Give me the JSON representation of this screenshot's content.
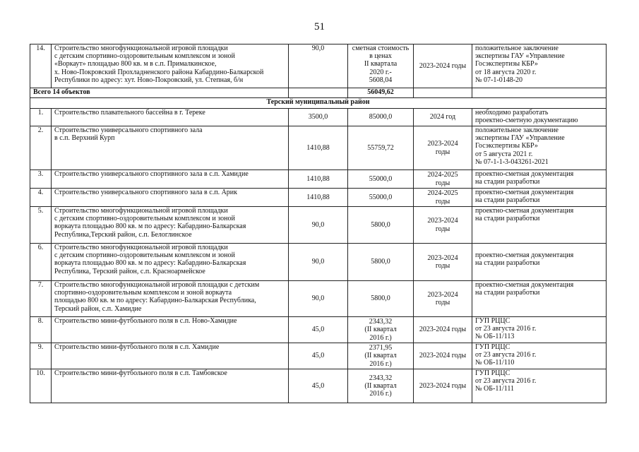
{
  "page_number": "51",
  "total_row": {
    "label": "Всего 14 объектов",
    "cost": "56049,62"
  },
  "section_title": "Терский муниципальный район",
  "rows_before": [
    {
      "num": "14.",
      "name": "Строительство многофункциональной игровой площадки\nс детским спортивно-оздоровительным комплексом и зоной\n«Воркаут» площадью 800 кв. м в с.п. Прималкинское,\nх. Ново-Покровский Прохладненского района Кабардино-Балкарской\nРеспублики по адресу: хут. Ново-Покровский, ул. Степная, б/н",
      "capacity": "90,0",
      "cost": "сметная стоимость\nв ценах\nII квартала\n2020 г.-\n5608,04",
      "period": "2023-2024 годы",
      "status": "положительное заключение\nэкспертизы ГАУ «Управление\nГосэкспертизы КБР»\nот 18 августа 2020 г.\n№ 07-1-0148-20"
    }
  ],
  "rows": [
    {
      "num": "1.",
      "name": "Строительство плавательного бассейна в г. Тереке",
      "capacity": "3500,0",
      "cost": "85000,0",
      "period": "2024 год",
      "status": "необходимо разработать\nпроектно-сметную документацию"
    },
    {
      "num": "2.",
      "name": "Строительство универсального спортивного зала\nв с.п. Верхний Курп",
      "capacity": "1410,88",
      "cost": "55759,72",
      "period": "2023-2024\nгоды",
      "status": "положительное заключение\nэкспертизы ГАУ «Управление\nГосэкспертизы КБР»\nот 5 августа 2021 г.\n№ 07-1-1-3-043261-2021"
    },
    {
      "num": "3.",
      "name": "Строительство универсального спортивного зала в с.п. Хамидие",
      "capacity": "1410,88",
      "cost": "55000,0",
      "period": "2024-2025\nгоды",
      "status": "проектно-сметная документация\nна стадии разработки"
    },
    {
      "num": "4.",
      "name": "Строительство универсального спортивного зала в с.п. Арик",
      "capacity": "1410,88",
      "cost": "55000,0",
      "period": "2024-2025\nгоды",
      "status": "проектно-сметная документация\nна стадии разработки"
    },
    {
      "num": "5.",
      "name": "Строительство многофункциональной игровой площадки\nс детским спортивно-оздоровительным комплексом и зоной\n воркаута площадью 800 кв. м по адресу: Кабардино-Балкарская\nРеспублика,Терский район, с.п. Белоглинское",
      "capacity": "90,0",
      "cost": "5800,0",
      "period": "2023-2024\nгоды",
      "status": "проектно-сметная документация\nна стадии разработки"
    },
    {
      "num": "6.",
      "name": "Строительство многофункциональной игровой площадки\nс детским спортивно-оздоровительным комплексом и зоной\nворкаута площадью 800 кв. м по адресу: Кабардино-Балкарская\nРеспублика, Терский район, с.п. Красноармейское",
      "capacity": "90,0",
      "cost": "5800,0",
      "period": "2023-2024\nгоды",
      "status": "\nпроектно-сметная документация\nна стадии разработки"
    },
    {
      "num": "7.",
      "name": "Строительство многофункциональной игровой площадки с детским\nспортивно-оздоровительным комплексом и зоной воркаута\nплощадью 800 кв. м по адресу: Кабардино-Балкарская Республика,\nТерский район, с.п. Хамидие",
      "capacity": "90,0",
      "cost": "5800,0",
      "period": "2023-2024\nгоды",
      "status": "проектно-сметная документация\nна стадии разработки"
    },
    {
      "num": "8.",
      "name": "Строительство мини-футбольного поля в с.п. Ново-Хамидие",
      "capacity": "45,0",
      "cost": "2343,32\n(II квартал\n2016 г.)",
      "period": "2023-2024 годы",
      "status": "ГУП РЦЦС\nот 23 августа 2016 г.\n№ ОБ-11/113"
    },
    {
      "num": "9.",
      "name": "Строительство мини-футбольного поля в с.п. Хамидие",
      "capacity": "45,0",
      "cost": "2371,95\n(II квартал\n2016 г.)",
      "period": "2023-2024 годы",
      "status": "ГУП РЦЦС\nот 23 августа 2016 г.\n№ ОБ-11/110"
    },
    {
      "num": "10.",
      "name": "Строительство мини-футбольного поля в с.п. Тамбовское",
      "capacity": "45,0",
      "cost": "2343,32\n(II квартал\n2016 г.)",
      "period": "2023-2024 годы",
      "status": "ГУП РЦЦС\nот 23 августа 2016 г.\n№ ОБ-11/111"
    }
  ]
}
